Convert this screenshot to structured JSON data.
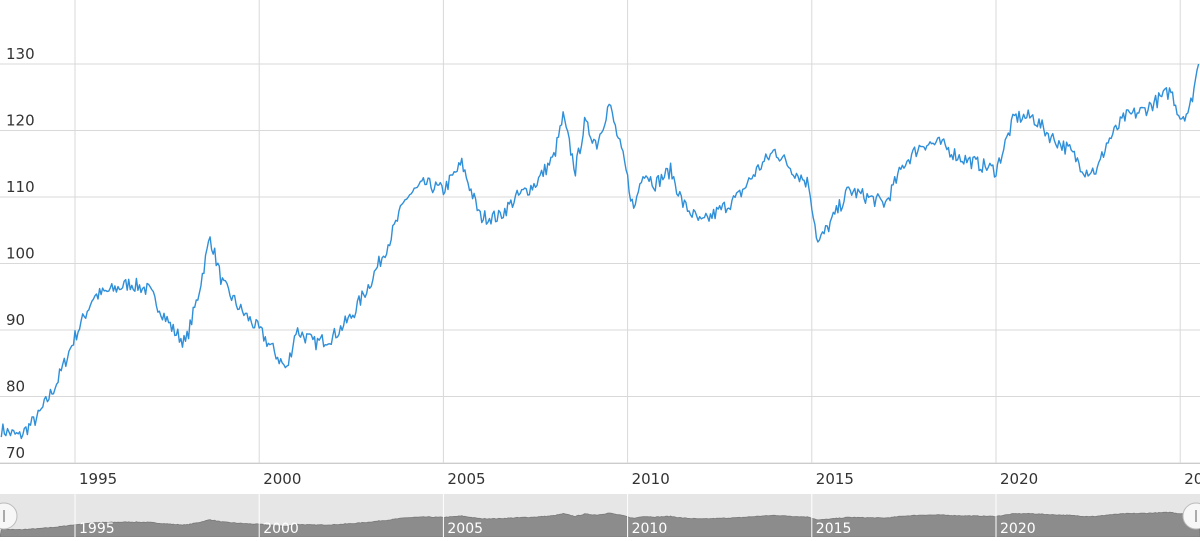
{
  "colors": {
    "series": "#2f8fd8",
    "grid": "#d9d9d9",
    "text": "#333333",
    "navigator_fill": "#8c8c8c",
    "navigator_bg": "#e6e6e6"
  },
  "navigator": {
    "labels": [
      "1995",
      "2000",
      "2005",
      "2010",
      "2015",
      "2020"
    ]
  },
  "chart_data": {
    "type": "line",
    "title": "",
    "xlabel": "",
    "ylabel": "",
    "grid": true,
    "legend": "none",
    "ylim": [
      70,
      130
    ],
    "xlim": [
      "1993-01",
      "2025-07"
    ],
    "y_ticks": [
      70,
      80,
      90,
      100,
      110,
      120,
      130
    ],
    "x_ticks": [
      "1995",
      "2000",
      "2005",
      "2010",
      "2015",
      "2020",
      "20"
    ],
    "x": [
      "1993-01",
      "1993-07",
      "1994-01",
      "1994-07",
      "1995-01",
      "1995-07",
      "1996-01",
      "1996-07",
      "1997-01",
      "1997-05",
      "1997-09",
      "1998-01",
      "1998-05",
      "1998-09",
      "1999-01",
      "1999-07",
      "2000-01",
      "2000-07",
      "2000-10",
      "2001-01",
      "2001-07",
      "2002-01",
      "2002-07",
      "2003-01",
      "2003-07",
      "2004-01",
      "2004-07",
      "2005-01",
      "2005-07",
      "2006-01",
      "2006-07",
      "2007-01",
      "2007-07",
      "2008-01",
      "2008-04",
      "2008-08",
      "2008-11",
      "2009-03",
      "2009-07",
      "2009-12",
      "2010-03",
      "2010-06",
      "2010-10",
      "2011-03",
      "2011-07",
      "2012-01",
      "2012-07",
      "2013-01",
      "2013-07",
      "2014-01",
      "2014-07",
      "2014-12",
      "2015-03",
      "2015-07",
      "2016-01",
      "2016-07",
      "2017-01",
      "2017-07",
      "2018-01",
      "2018-07",
      "2019-01",
      "2019-07",
      "2020-01",
      "2020-04",
      "2020-07",
      "2021-01",
      "2021-07",
      "2022-01",
      "2022-06",
      "2022-10",
      "2023-01",
      "2023-07",
      "2024-01",
      "2024-07",
      "2024-10",
      "2025-01",
      "2025-04",
      "2025-07"
    ],
    "series": [
      {
        "values": [
          75,
          74,
          77,
          82,
          89,
          95,
          96,
          97,
          96,
          93,
          90,
          88,
          95,
          104,
          97,
          93,
          90,
          86,
          84,
          90,
          88,
          89,
          92,
          97,
          103,
          110,
          112,
          111,
          115,
          107,
          107,
          110,
          112,
          116,
          122,
          114,
          121,
          118,
          124,
          115,
          108,
          114,
          112,
          114,
          109,
          106,
          108,
          110,
          114,
          117,
          114,
          112,
          103,
          106,
          111,
          110,
          109,
          115,
          118,
          118,
          116,
          115,
          114,
          118,
          122,
          122,
          119,
          117,
          114,
          114,
          118,
          122,
          123,
          125,
          126,
          122,
          123,
          130
        ]
      }
    ]
  }
}
